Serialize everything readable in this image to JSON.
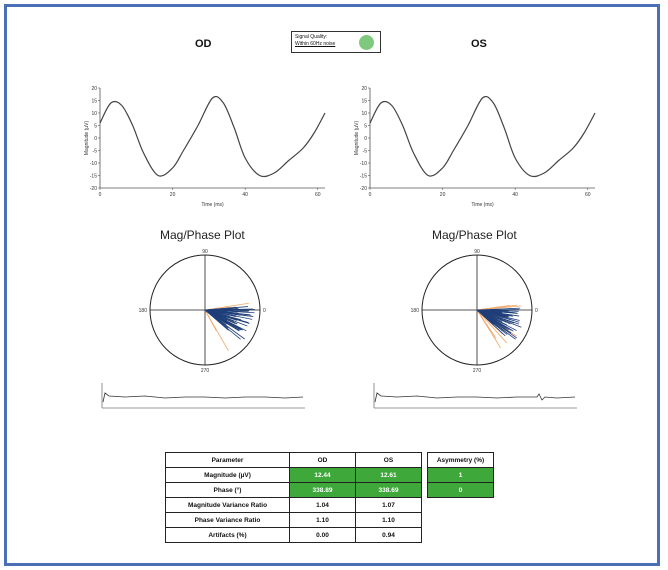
{
  "eyes": {
    "od": {
      "title": "OD"
    },
    "os": {
      "title": "OS"
    }
  },
  "signal_quality": {
    "label": "Signal Quality:",
    "sublabel": "Within 60Hz noise",
    "color": "#7fc97f"
  },
  "waveform_axes": {
    "ylabel": "Magnitude (µV)",
    "xlabel": "Time (ms)",
    "yticks": [
      "20",
      "15",
      "10",
      "5",
      "0",
      "-5",
      "-10",
      "-15",
      "-20"
    ],
    "xticks": [
      "0",
      "20",
      "40",
      "60"
    ]
  },
  "magphase": {
    "title": "Mag/Phase Plot",
    "labels": {
      "top": "90",
      "left": "180",
      "right": "0",
      "bottom": "270"
    }
  },
  "chart_data": [
    {
      "type": "line",
      "eye": "OD",
      "x": [
        0,
        3,
        6,
        9,
        12,
        16,
        20,
        23,
        27,
        31,
        34,
        37,
        40,
        44,
        48,
        52,
        56,
        59,
        62
      ],
      "y": [
        6,
        14,
        13,
        5,
        -6,
        -15,
        -12,
        -5,
        5,
        16,
        14,
        4,
        -8,
        -15,
        -14,
        -9,
        -4,
        2,
        10
      ],
      "xlabel": "Time (ms)",
      "ylabel": "Magnitude (µV)",
      "xlim": [
        0,
        62
      ],
      "ylim": [
        -20,
        20
      ],
      "line_color": "#444444"
    },
    {
      "type": "line",
      "eye": "OS",
      "x": [
        0,
        3,
        6,
        9,
        12,
        16,
        20,
        23,
        27,
        31,
        34,
        37,
        40,
        44,
        48,
        52,
        56,
        59,
        62
      ],
      "y": [
        6,
        14,
        13,
        5,
        -6,
        -15,
        -12,
        -5,
        5,
        16,
        14,
        4,
        -8,
        -15,
        -14,
        -9,
        -4,
        2,
        10
      ],
      "xlabel": "Time (ms)",
      "ylabel": "Magnitude (µV)",
      "xlim": [
        0,
        62
      ],
      "ylim": [
        -20,
        20
      ],
      "line_color": "#444444"
    }
  ],
  "table": {
    "headers": [
      "Parameter",
      "OD",
      "OS",
      "Asymmetry (%)"
    ],
    "rows": [
      {
        "param": "Magnitude (µV)",
        "od": "12.44",
        "os": "12.61",
        "asym": "1",
        "highlight": true
      },
      {
        "param": "Phase (°)",
        "od": "338.89",
        "os": "338.69",
        "asym": "0",
        "highlight": true
      },
      {
        "param": "Magnitude Variance Ratio",
        "od": "1.04",
        "os": "1.07",
        "asym": "",
        "highlight": false
      },
      {
        "param": "Phase Variance Ratio",
        "od": "1.10",
        "os": "1.10",
        "asym": "",
        "highlight": false
      },
      {
        "param": "Artifacts (%)",
        "od": "0.00",
        "os": "0.94",
        "asym": "",
        "highlight": false
      }
    ],
    "highlight_color": "#3ea83a"
  }
}
